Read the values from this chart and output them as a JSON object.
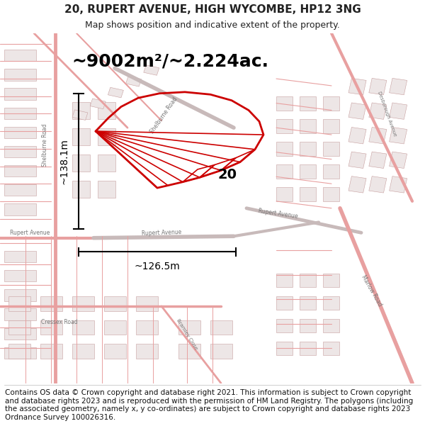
{
  "title_line1": "20, RUPERT AVENUE, HIGH WYCOMBE, HP12 3NG",
  "title_line2": "Map shows position and indicative extent of the property.",
  "area_text": "~9002m²/~2.224ac.",
  "dim_height": "~138.1m",
  "dim_width": "~126.5m",
  "label_20": "20",
  "bg_color": "#f5eeee",
  "road_color_light": "#e8a0a0",
  "road_color_dark": "#d07070",
  "building_fill": "#ede6e6",
  "building_stroke": "#c8a0a0",
  "road_gray": "#c8baba",
  "property_color": "#cc0000",
  "text_color": "#222222",
  "footer_color": "#111111",
  "footer_text": "Contains OS data © Crown copyright and database right 2021. This information is subject to Crown copyright and database rights 2023 and is reproduced with the permission of HM Land Registry. The polygons (including the associated geometry, namely x, y co-ordinates) are subject to Crown copyright and database rights 2023 Ordnance Survey 100026316.",
  "title_fontsize": 11,
  "subtitle_fontsize": 9,
  "area_fontsize": 18,
  "dim_fontsize": 10,
  "label_fontsize": 14,
  "footer_fontsize": 7.5
}
